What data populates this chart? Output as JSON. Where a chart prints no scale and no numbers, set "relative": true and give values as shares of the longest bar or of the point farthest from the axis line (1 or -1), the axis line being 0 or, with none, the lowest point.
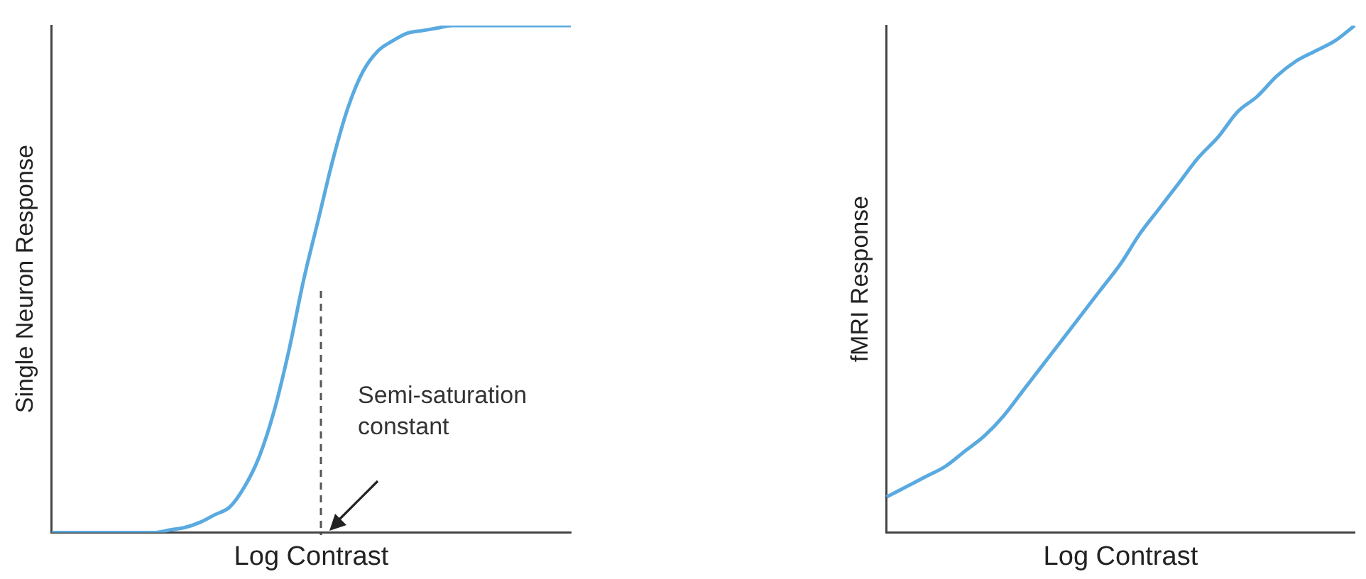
{
  "chart_data": [
    {
      "type": "line",
      "relative": true,
      "xlabel": "Log Contrast",
      "ylabel": "Single Neuron Response",
      "annotations": [
        "Semi-saturation constant"
      ],
      "marker": "none",
      "legend": false,
      "grid": false,
      "tick_labels": false,
      "categories": [
        null,
        null,
        null,
        null,
        null,
        null,
        null,
        null,
        null,
        null,
        null,
        null,
        null,
        null,
        null,
        null,
        null,
        null,
        null,
        null,
        null,
        null,
        null,
        null,
        null,
        null,
        null,
        null,
        null,
        null,
        null,
        null,
        null,
        null,
        null,
        null
      ],
      "series": [
        {
          "color": "#5aaae0",
          "values": [
            0,
            0,
            0,
            0,
            0,
            0,
            0,
            0,
            0.005,
            0.01,
            0.02,
            0.035,
            0.05,
            0.09,
            0.15,
            0.24,
            0.36,
            0.5,
            0.62,
            0.74,
            0.84,
            0.91,
            0.95,
            0.97,
            0.985,
            0.99,
            0.995,
            1,
            1,
            1,
            1,
            1,
            1,
            1,
            1,
            1
          ]
        }
      ]
    },
    {
      "type": "line",
      "relative": true,
      "xlabel": "Log Contrast",
      "ylabel": "fMRI Response",
      "marker": "none",
      "legend": false,
      "grid": false,
      "tick_labels": false,
      "categories": [
        null,
        null,
        null,
        null,
        null,
        null,
        null,
        null,
        null,
        null,
        null,
        null,
        null,
        null,
        null,
        null,
        null,
        null,
        null,
        null,
        null,
        null,
        null,
        null,
        null
      ],
      "series": [
        {
          "color": "#5aaae0",
          "values": [
            0.07,
            0.09,
            0.11,
            0.13,
            0.16,
            0.19,
            0.23,
            0.28,
            0.33,
            0.38,
            0.43,
            0.48,
            0.53,
            0.59,
            0.64,
            0.69,
            0.74,
            0.78,
            0.83,
            0.86,
            0.9,
            0.93,
            0.95,
            0.97,
            1
          ]
        }
      ]
    }
  ]
}
